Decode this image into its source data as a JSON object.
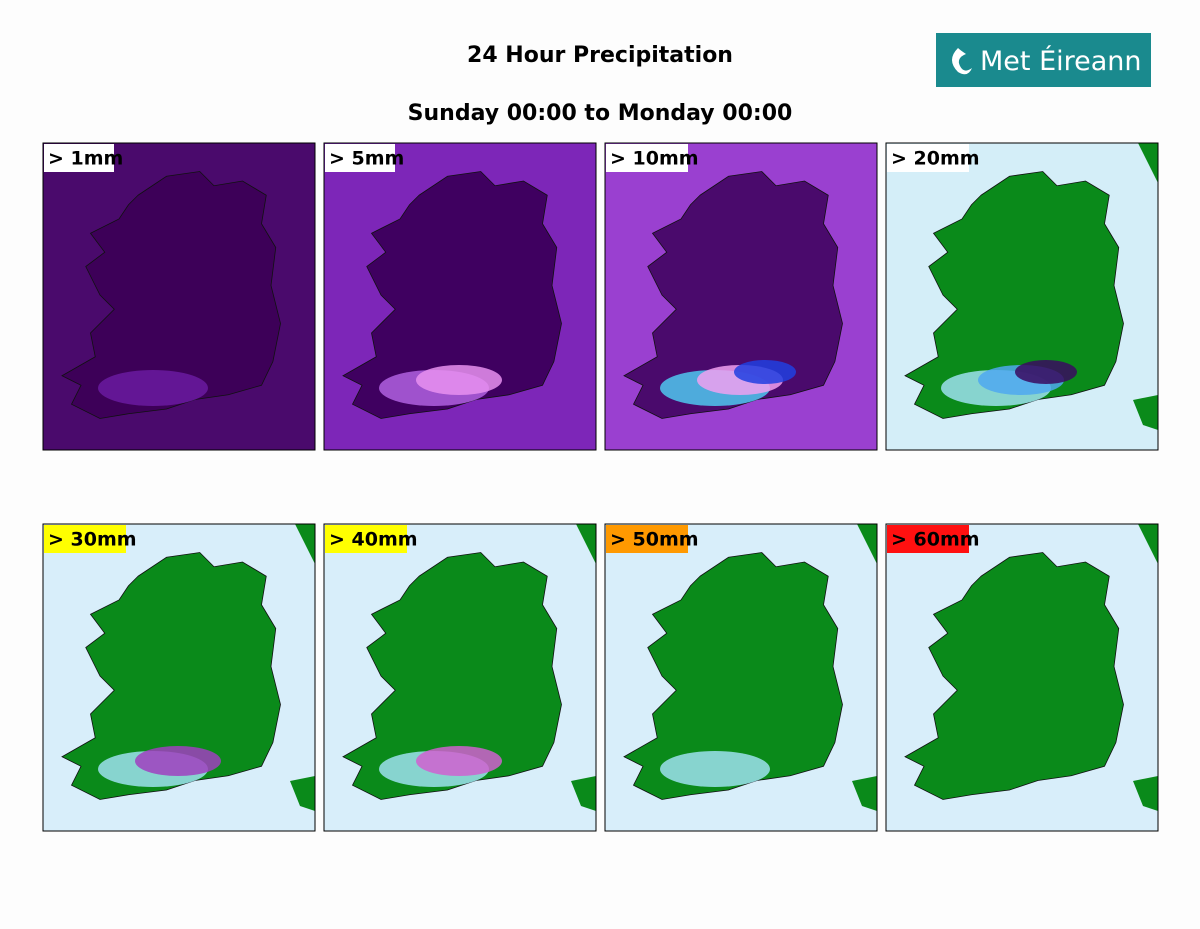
{
  "header": {
    "title": "24 Hour Precipitation",
    "subtitle": "Sunday 00:00 to Monday 00:00",
    "logo": "Met Éireann"
  },
  "panels": [
    {
      "label": "> 1mm",
      "label_color": "#ffffff"
    },
    {
      "label": "> 5mm",
      "label_color": "#ffffff"
    },
    {
      "label": "> 10mm",
      "label_color": "#ffffff"
    },
    {
      "label": "> 20mm",
      "label_color": "#ffffff"
    },
    {
      "label": "> 30mm",
      "label_color": "#ffff00"
    },
    {
      "label": "> 40mm",
      "label_color": "#ffff00"
    },
    {
      "label": "> 50mm",
      "label_color": "#ff9900"
    },
    {
      "label": "> 60mm",
      "label_color": "#ff1010"
    }
  ]
}
